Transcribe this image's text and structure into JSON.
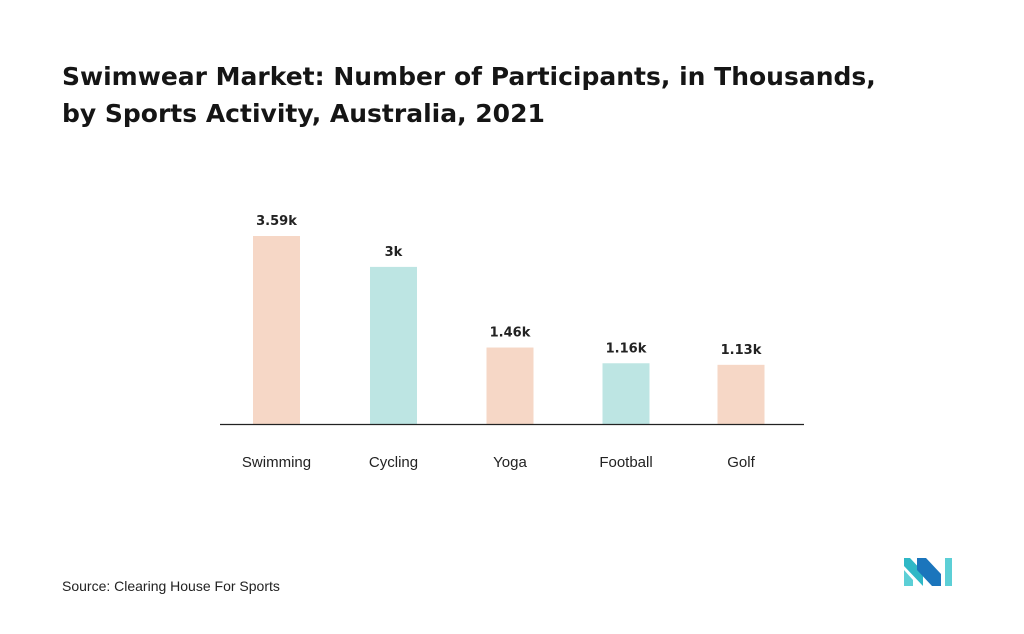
{
  "title": {
    "line1": "Swimwear Market: Number of Participants, in Thousands,",
    "line2": "by Sports Activity, Australia, 2021"
  },
  "source": "Source: Clearing House For Sports",
  "logo": {
    "icon": "mordor-intelligence-logo-icon",
    "colors": [
      "#2fb8c6",
      "#1b75bc",
      "#5ccfd6"
    ]
  },
  "colors": {
    "peach": "#f6d7c6",
    "teal": "#bde5e3",
    "axis": "#222222",
    "label": "#222222"
  },
  "chart_data": {
    "type": "bar",
    "categories": [
      "Swimming",
      "Cycling",
      "Yoga",
      "Football",
      "Golf"
    ],
    "values": [
      3.59,
      3.0,
      1.46,
      1.16,
      1.13
    ],
    "data_labels": [
      "3.59k",
      "3k",
      "1.46k",
      "1.16k",
      "1.13k"
    ],
    "bar_colors": [
      "#f6d7c6",
      "#bde5e3",
      "#f6d7c6",
      "#bde5e3",
      "#f6d7c6"
    ],
    "ylim": [
      0,
      3.59
    ],
    "grid": false,
    "legend": "none",
    "xlabel": "",
    "ylabel": ""
  }
}
